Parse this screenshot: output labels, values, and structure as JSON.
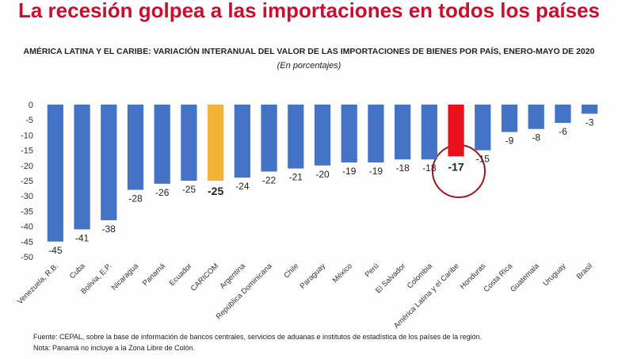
{
  "chart_data": {
    "type": "bar",
    "title": "La recesión golpea a las importaciones en todos los países",
    "subtitle": "AMÉRICA LATINA Y EL CARIBE: VARIACIÓN INTERANUAL DEL VALOR DE LAS IMPORTACIONES DE BIENES POR PAÍS, ENERO-MAYO DE 2020",
    "unit_note": "(En porcentajes)",
    "categories": [
      "Venezuela, R.B.",
      "Cuba",
      "Bolivia, E.P.",
      "Nicaragua",
      "Panamá",
      "Ecuador",
      "CARICOM",
      "Argentina",
      "República Dominicana",
      "Chile",
      "Paraguay",
      "México",
      "Perú",
      "El Salvador",
      "Colombia",
      "América Latina y el Caribe",
      "Honduras",
      "Costa Rica",
      "Guatemala",
      "Uruguay",
      "Brasil"
    ],
    "values": [
      -45,
      -41,
      -38,
      -28,
      -26,
      -25,
      -25,
      -24,
      -22,
      -21,
      -20,
      -19,
      -19,
      -18,
      -18,
      -17,
      -15,
      -9,
      -8,
      -6,
      -3
    ],
    "color": "#4472c4",
    "colors": [
      "#4472c4",
      "#4472c4",
      "#4472c4",
      "#4472c4",
      "#4472c4",
      "#4472c4",
      "#f4b236",
      "#4472c4",
      "#4472c4",
      "#4472c4",
      "#4472c4",
      "#4472c4",
      "#4472c4",
      "#4472c4",
      "#4472c4",
      "#e8101a",
      "#4472c4",
      "#4472c4",
      "#4472c4",
      "#4472c4",
      "#4472c4"
    ],
    "ylim": [
      -50,
      0
    ],
    "yticks": [
      0,
      -5,
      -10,
      -15,
      -20,
      -25,
      -30,
      -35,
      -40,
      -45,
      -50
    ],
    "grid": false,
    "footnotes": [
      "Fuente: CEPAL, sobre la base de información de bancos centrales, servicios de aduanas e institutos de estadística de los países de la región.",
      "Nota: Panamá no incluye a la Zona Libre de Colón."
    ]
  }
}
